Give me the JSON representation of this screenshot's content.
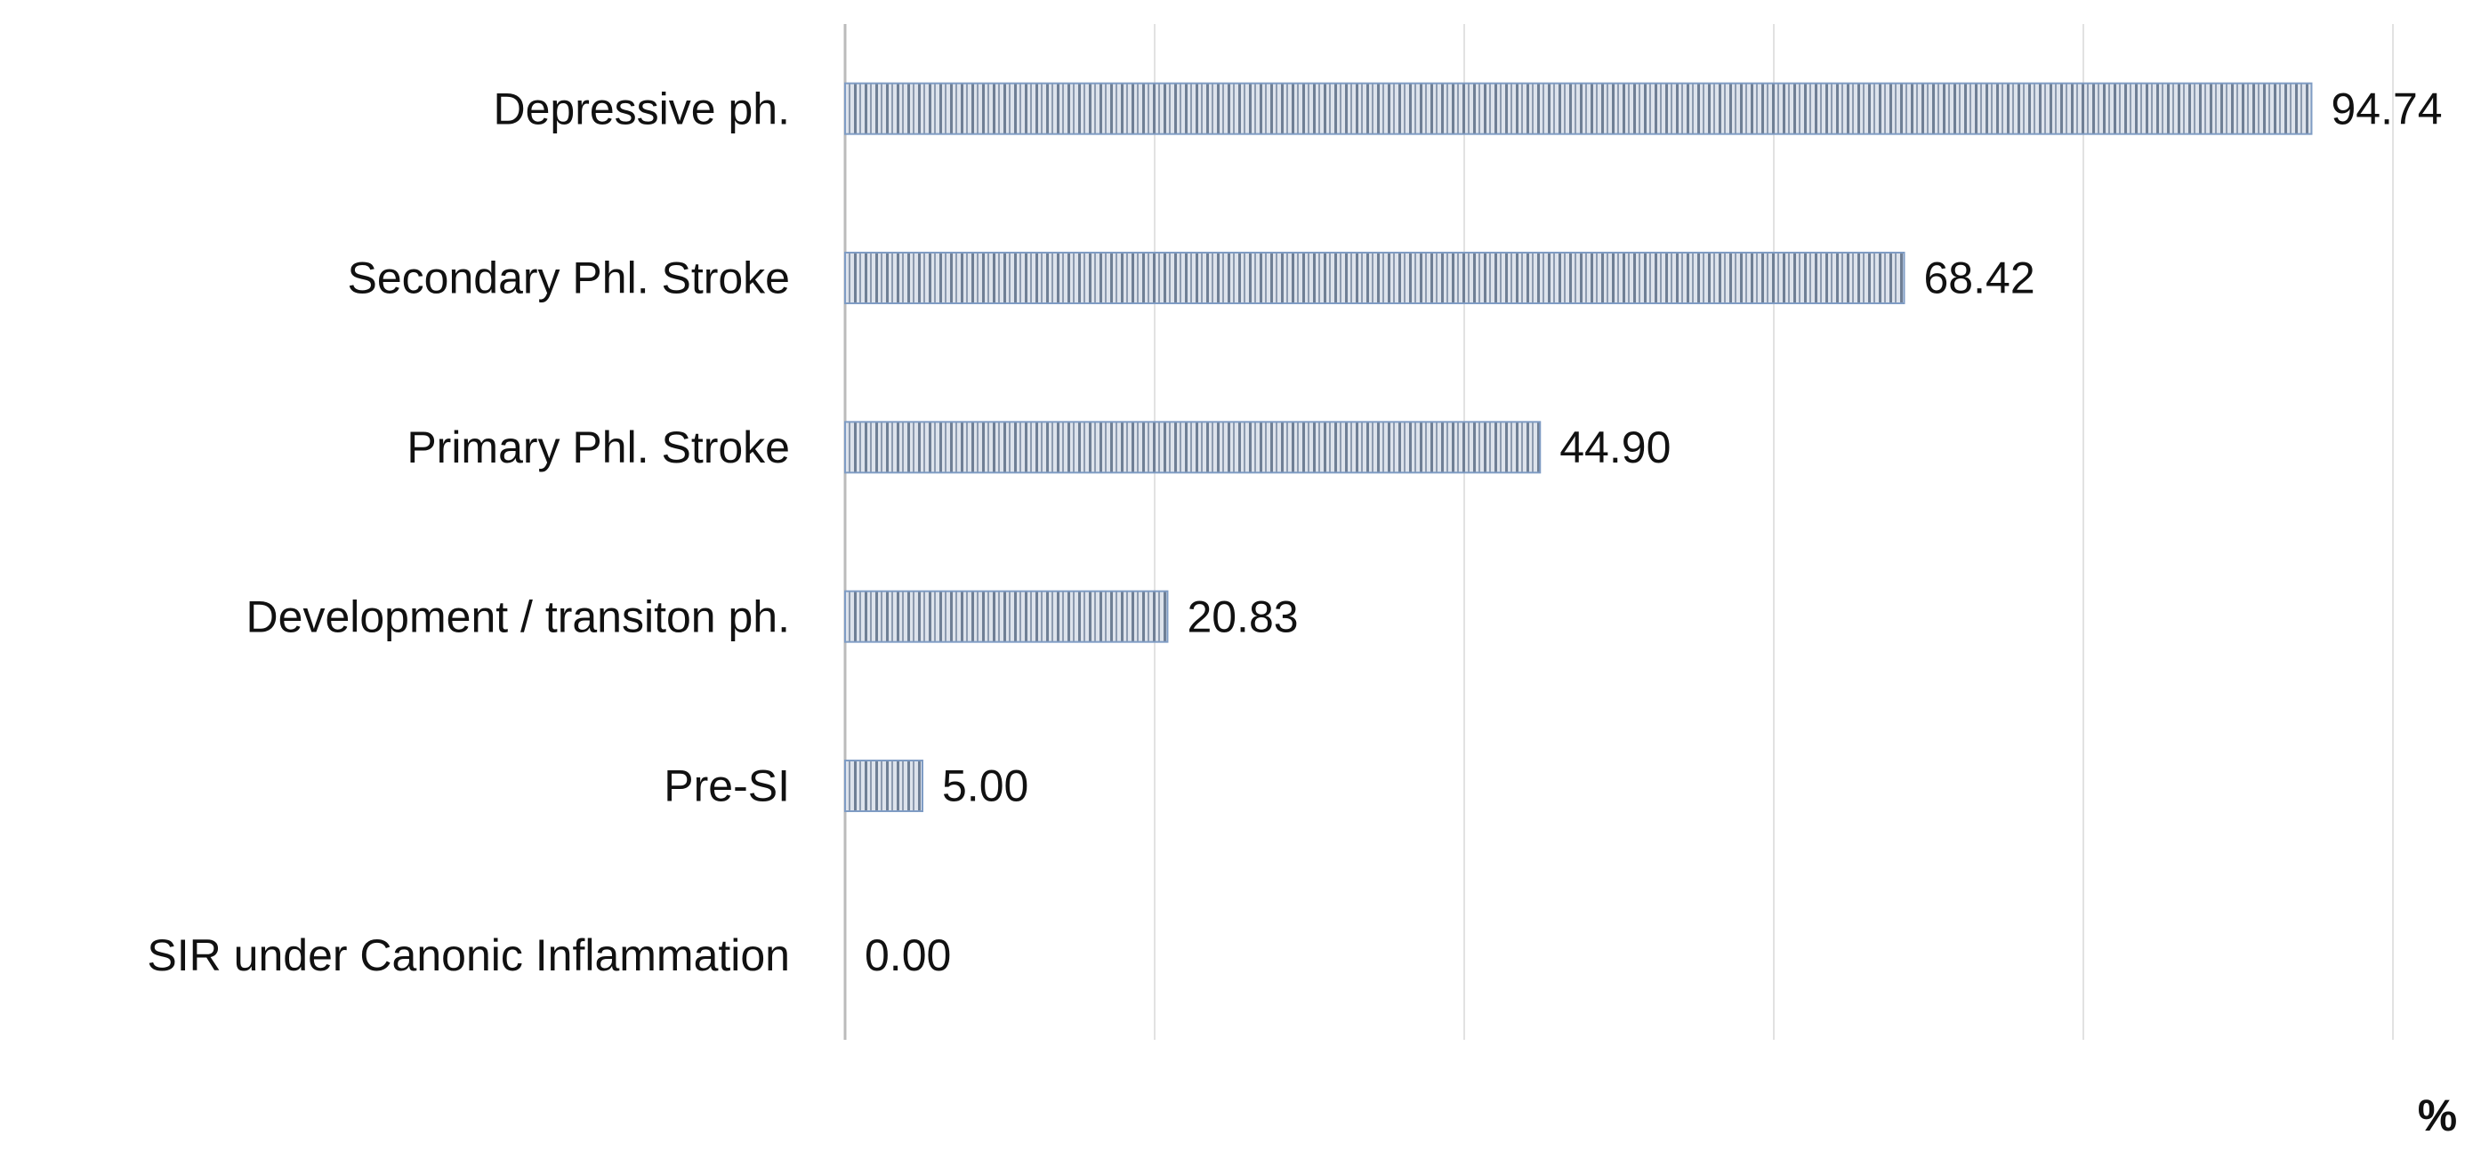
{
  "chart_data": {
    "type": "hbar",
    "x_label": "%",
    "categories": [
      "Depressive ph.",
      "Secondary Phl. Stroke",
      "Primary Phl. Stroke",
      "Development / transiton ph.",
      "Pre-SI",
      "SIR under Canonic Inflammation"
    ],
    "values": [
      94.74,
      68.42,
      44.9,
      20.83,
      5,
      0
    ],
    "value_labels": [
      "94.74",
      "68.42",
      "44.90",
      "20.83",
      "5.00",
      "0.00"
    ],
    "color": "#7f9cc4",
    "xlim": [
      0,
      100
    ],
    "xticks": [
      0,
      20,
      40,
      60,
      80,
      100
    ],
    "grid": true
  }
}
